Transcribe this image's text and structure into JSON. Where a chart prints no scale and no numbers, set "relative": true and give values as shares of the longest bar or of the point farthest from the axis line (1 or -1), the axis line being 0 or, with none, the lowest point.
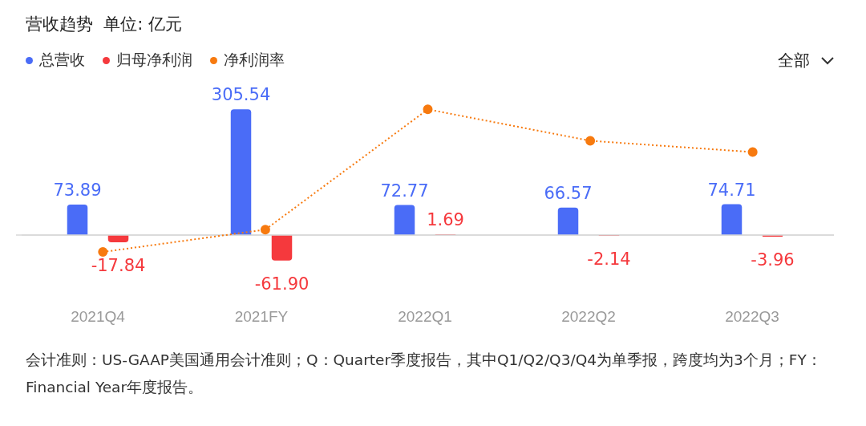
{
  "chart_data": [
    {
      "type": "bar",
      "title": "营收趋势  单位: 亿元",
      "categories": [
        "2021Q4",
        "2021FY",
        "2022Q1",
        "2022Q2",
        "2022Q3"
      ],
      "series": [
        {
          "name": "总营收",
          "color": "#4a6cf7",
          "values": [
            73.89,
            305.54,
            72.77,
            66.57,
            74.71
          ],
          "value_labels": [
            "73.89",
            "305.54",
            "72.77",
            "66.57",
            "74.71"
          ]
        },
        {
          "name": "归母净利润",
          "color": "#f5393d",
          "values": [
            -17.84,
            -61.9,
            1.69,
            -2.14,
            -3.96
          ],
          "value_labels": [
            "-17.84",
            "-61.90",
            "1.69",
            "-2.14",
            "-3.96"
          ]
        }
      ],
      "legend": "top left",
      "tick_labels": "x",
      "grid": false,
      "annotations": [
        "全部",
        "会计准则：US-GAAP美国通用会计准则；Q：Quarter季度报告，其中Q1/Q2/Q3/Q4为单季报，跨度均为3个月；FY：Financial Year年度报告。"
      ]
    },
    {
      "type": "line",
      "categories": [
        null,
        null,
        null,
        null,
        null
      ],
      "series": [
        {
          "name": "净利润率",
          "color": "#f77a0f",
          "values": [
            -0.135,
            0.043,
            1,
            0.75,
            0.66
          ]
        }
      ],
      "relative": true,
      "line_style": "dotted",
      "marker": "circle",
      "legend": "top left",
      "tick_labels": false
    }
  ]
}
